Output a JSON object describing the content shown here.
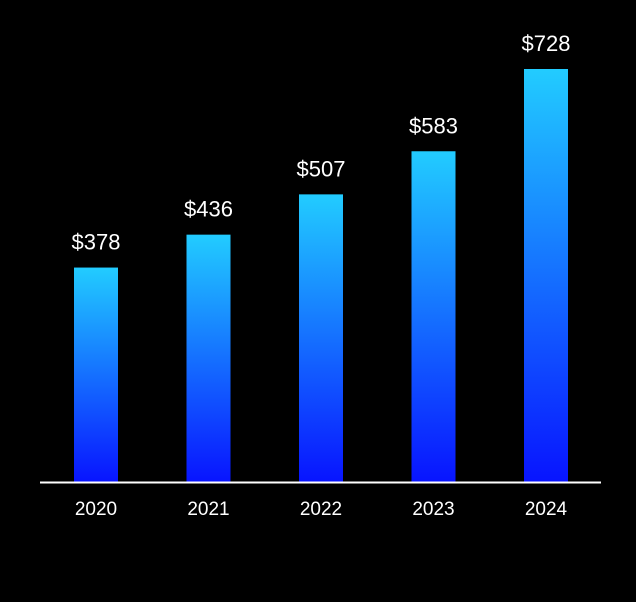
{
  "chart_data": {
    "type": "bar",
    "title": "",
    "xlabel": "",
    "ylabel": "",
    "categories": [
      "2020",
      "2021",
      "2022",
      "2023",
      "2024"
    ],
    "values": [
      378,
      436,
      507,
      583,
      728
    ],
    "data_labels": [
      "$378",
      "$436",
      "$507",
      "$583",
      "$728"
    ],
    "ylim": [
      0,
      728
    ],
    "grid": false,
    "legend": "none",
    "colors": {
      "bar_top": "#22CCFF",
      "bar_bottom": "#0814FF",
      "background": "#000000",
      "axis": "#FFFFFF",
      "text": "#FFFFFF"
    }
  }
}
